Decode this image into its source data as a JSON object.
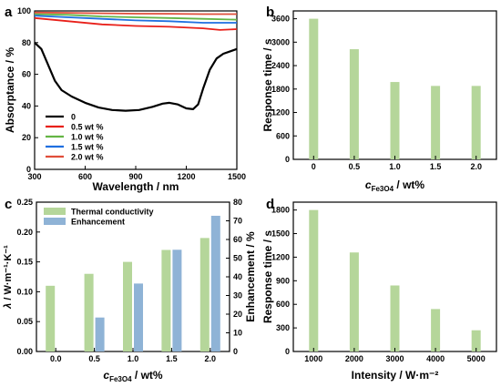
{
  "panels": {
    "a": "a",
    "b": "b",
    "c": "c",
    "d": "d"
  },
  "chart_data": [
    {
      "panel": "a",
      "type": "line",
      "xlabel": "Wavelength / nm",
      "ylabel": "Absorptance / %",
      "xlim": [
        300,
        1500
      ],
      "ylim": [
        0,
        100
      ],
      "xticks": [
        300,
        600,
        900,
        1200,
        1500
      ],
      "yticks": [
        0,
        20,
        40,
        60,
        80,
        100
      ],
      "legend_position": "bottom-left",
      "series": [
        {
          "name": "0",
          "color": "#000000",
          "points": [
            [
              300,
              80
            ],
            [
              340,
              76
            ],
            [
              380,
              66
            ],
            [
              420,
              56
            ],
            [
              460,
              50
            ],
            [
              520,
              46
            ],
            [
              600,
              42
            ],
            [
              680,
              39
            ],
            [
              760,
              37.5
            ],
            [
              840,
              37
            ],
            [
              920,
              37.5
            ],
            [
              1000,
              39.5
            ],
            [
              1060,
              41.5
            ],
            [
              1100,
              42
            ],
            [
              1150,
              41
            ],
            [
              1200,
              38.5
            ],
            [
              1240,
              38
            ],
            [
              1270,
              41
            ],
            [
              1300,
              51
            ],
            [
              1340,
              63
            ],
            [
              1380,
              70
            ],
            [
              1420,
              73
            ],
            [
              1460,
              74.5
            ],
            [
              1500,
              76
            ]
          ]
        },
        {
          "name": "0.5 wt %",
          "color": "#e8201a",
          "points": [
            [
              300,
              95.5
            ],
            [
              500,
              93.5
            ],
            [
              700,
              91.5
            ],
            [
              900,
              90.5
            ],
            [
              1100,
              90
            ],
            [
              1300,
              89
            ],
            [
              1400,
              88
            ],
            [
              1500,
              88.5
            ]
          ]
        },
        {
          "name": "1.0 wt %",
          "color": "#64b545",
          "points": [
            [
              300,
              98
            ],
            [
              500,
              97.5
            ],
            [
              700,
              96.5
            ],
            [
              900,
              96
            ],
            [
              1100,
              95.5
            ],
            [
              1300,
              95
            ],
            [
              1500,
              94.5
            ]
          ]
        },
        {
          "name": "1.5 wt %",
          "color": "#1f6fe0",
          "points": [
            [
              300,
              97
            ],
            [
              500,
              96
            ],
            [
              700,
              95
            ],
            [
              900,
              94
            ],
            [
              1100,
              93.5
            ],
            [
              1300,
              92.5
            ],
            [
              1500,
              92.5
            ]
          ]
        },
        {
          "name": "2.0 wt %",
          "color": "#e04e3a",
          "points": [
            [
              300,
              99
            ],
            [
              500,
              98.8
            ],
            [
              700,
              98.5
            ],
            [
              900,
              98.3
            ],
            [
              1100,
              98.2
            ],
            [
              1300,
              98
            ],
            [
              1500,
              98
            ]
          ]
        }
      ]
    },
    {
      "panel": "b",
      "type": "bar",
      "xlabel_italic": "c",
      "xlabel_sub": "Fe3O4",
      "xlabel_rest": " / wt%",
      "ylabel": "Response time / s",
      "categories": [
        "0",
        "0.5",
        "1.0",
        "1.5",
        "2.0"
      ],
      "values": [
        3600,
        2820,
        1980,
        1880,
        1880
      ],
      "ylim": [
        0,
        3800
      ],
      "yticks": [
        0,
        600,
        1200,
        1800,
        2400,
        3000,
        3600
      ],
      "bar_color": "#b5d69a"
    },
    {
      "panel": "c",
      "type": "bar",
      "xlabel_italic": "c",
      "xlabel_sub": "Fe3O4",
      "xlabel_rest": " / wt%",
      "ylabel_italic": "λ",
      "ylabel_rest": " / W·m⁻¹·K⁻¹",
      "y2label": "Enhancement / %",
      "categories": [
        "0.0",
        "0.5",
        "1.0",
        "1.5",
        "2.0"
      ],
      "ylim": [
        0,
        0.25
      ],
      "yticks": [
        0.0,
        0.05,
        0.1,
        0.15,
        0.2,
        0.25
      ],
      "y2lim": [
        0,
        80
      ],
      "y2ticks": [
        0,
        10,
        20,
        30,
        40,
        50,
        60,
        70,
        80
      ],
      "legend_position": "top-left",
      "series": [
        {
          "name": "Thermal conductivity",
          "axis": "left",
          "color": "#b5d69a",
          "values": [
            0.11,
            0.13,
            0.15,
            0.17,
            0.19
          ]
        },
        {
          "name": "Enhancement",
          "axis": "right",
          "color": "#8fb3d6",
          "values": [
            null,
            18.2,
            36.4,
            54.5,
            72.7
          ]
        }
      ]
    },
    {
      "panel": "d",
      "type": "bar",
      "xlabel": "Intensity / W·m⁻²",
      "ylabel": "Response time / s",
      "categories": [
        "1000",
        "2000",
        "3000",
        "4000",
        "5000"
      ],
      "values": [
        1800,
        1260,
        840,
        540,
        270
      ],
      "ylim": [
        0,
        1900
      ],
      "yticks": [
        0,
        300,
        600,
        900,
        1200,
        1500,
        1800
      ],
      "bar_color": "#b5d69a"
    }
  ]
}
